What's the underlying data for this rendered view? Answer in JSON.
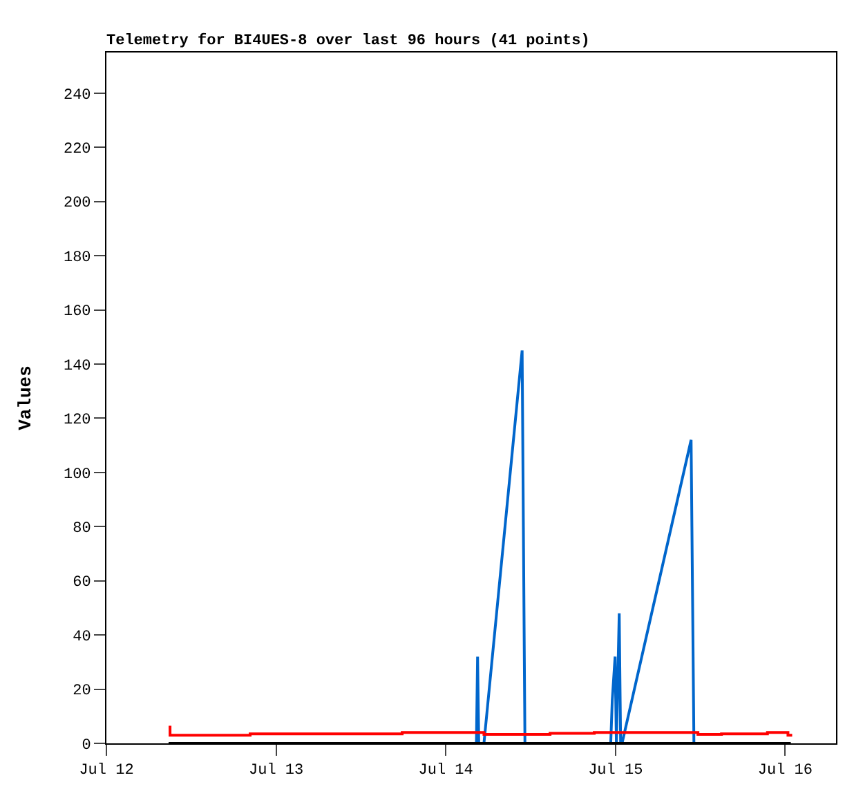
{
  "chart_data": {
    "type": "line",
    "title": "Telemetry for BI4UES-8 over last 96 hours (41 points)",
    "ylabel": "Values",
    "xlim": [
      "--07-12T00:00",
      "--07-16T07:12"
    ],
    "xticks": [
      {
        "value": "--07-12",
        "label": "Jul 12"
      },
      {
        "value": "--07-13",
        "label": "Jul 13"
      },
      {
        "value": "--07-14",
        "label": "Jul 14"
      },
      {
        "value": "--07-15",
        "label": "Jul 15"
      },
      {
        "value": "--07-16",
        "label": "Jul 16"
      }
    ],
    "ylim": [
      0,
      255
    ],
    "yticks": [
      0,
      20,
      40,
      60,
      80,
      100,
      120,
      140,
      160,
      180,
      200,
      220,
      240
    ],
    "series": [
      {
        "color": "#0066cc",
        "x": [
          "--07-14T04:20",
          "--07-14T04:25",
          "--07-14T04:30",
          "--07-14T04:40",
          "--07-14T05:24",
          "--07-14T10:48",
          "--07-14T11:00",
          "--07-14T11:12",
          "--07-14T23:20",
          "--07-14T23:33",
          "--07-14T23:57",
          "--07-15T00:08",
          "--07-15T00:32",
          "--07-15T00:44",
          "--07-15T00:56",
          "--07-15T10:42",
          "--07-15T10:54",
          "--07-15T11:06"
        ],
        "values": [
          0,
          16,
          32,
          0,
          0,
          145,
          72,
          0,
          0,
          16,
          32,
          0,
          48,
          0,
          0,
          112,
          56,
          0
        ]
      },
      {
        "type": "step",
        "color": "#ff0000",
        "x": [
          "--07-12T08:48",
          "--07-12T09:00",
          "--07-12T20:20",
          "--07-13T17:50",
          "--07-14T05:24",
          "--07-14T14:45",
          "--07-14T21:00",
          "--07-15T11:40",
          "--07-15T15:00",
          "--07-15T21:30",
          "--07-16T00:24",
          "--07-16T00:48"
        ],
        "values": [
          6,
          3,
          3.5,
          4,
          3.3,
          3.7,
          4,
          3.3,
          3.5,
          4,
          3,
          2.5
        ]
      },
      {
        "color": "#000000",
        "x": [
          "--07-12T08:48",
          "--07-16T00:48"
        ],
        "values": [
          0,
          0
        ]
      }
    ]
  }
}
